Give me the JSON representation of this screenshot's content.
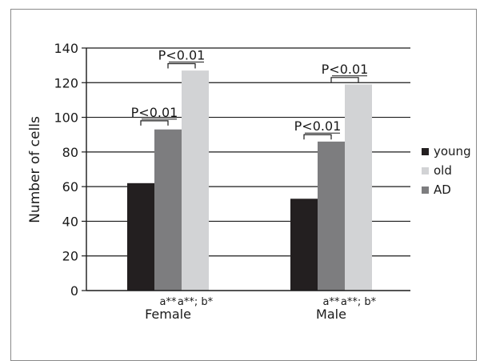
{
  "chart_data": {
    "type": "bar",
    "categories": [
      "Female",
      "Male"
    ],
    "series": [
      {
        "name": "young",
        "values": [
          62,
          53
        ],
        "color": "#231f20"
      },
      {
        "name": "AD",
        "values": [
          93,
          86
        ],
        "color": "#7d7d7f"
      },
      {
        "name": "old",
        "values": [
          127,
          119
        ],
        "color": "#d2d3d5"
      }
    ],
    "legend_order": [
      "young",
      "old",
      "AD"
    ],
    "ylabel": "Number of cells",
    "ylim": [
      0,
      140
    ],
    "yticks": [
      0,
      20,
      40,
      60,
      80,
      100,
      120,
      140
    ],
    "grid": true,
    "legend_position": "right",
    "significance": [
      {
        "category": "Female",
        "from": "young",
        "to": "AD",
        "label": "P<0.01",
        "bracket_y": 98
      },
      {
        "category": "Female",
        "from": "AD",
        "to": "old",
        "label": "P<0.01",
        "bracket_y": 131
      },
      {
        "category": "Male",
        "from": "young",
        "to": "AD",
        "label": "P<0.01",
        "bracket_y": 90
      },
      {
        "category": "Male",
        "from": "AD",
        "to": "old",
        "label": "P<0.01",
        "bracket_y": 123
      }
    ],
    "bar_annotations": [
      {
        "category": "Female",
        "series": "AD",
        "label": "a**"
      },
      {
        "category": "Female",
        "series": "old",
        "label": "a**; b*"
      },
      {
        "category": "Male",
        "series": "AD",
        "label": "a**"
      },
      {
        "category": "Male",
        "series": "old",
        "label": "a**; b*"
      }
    ]
  }
}
